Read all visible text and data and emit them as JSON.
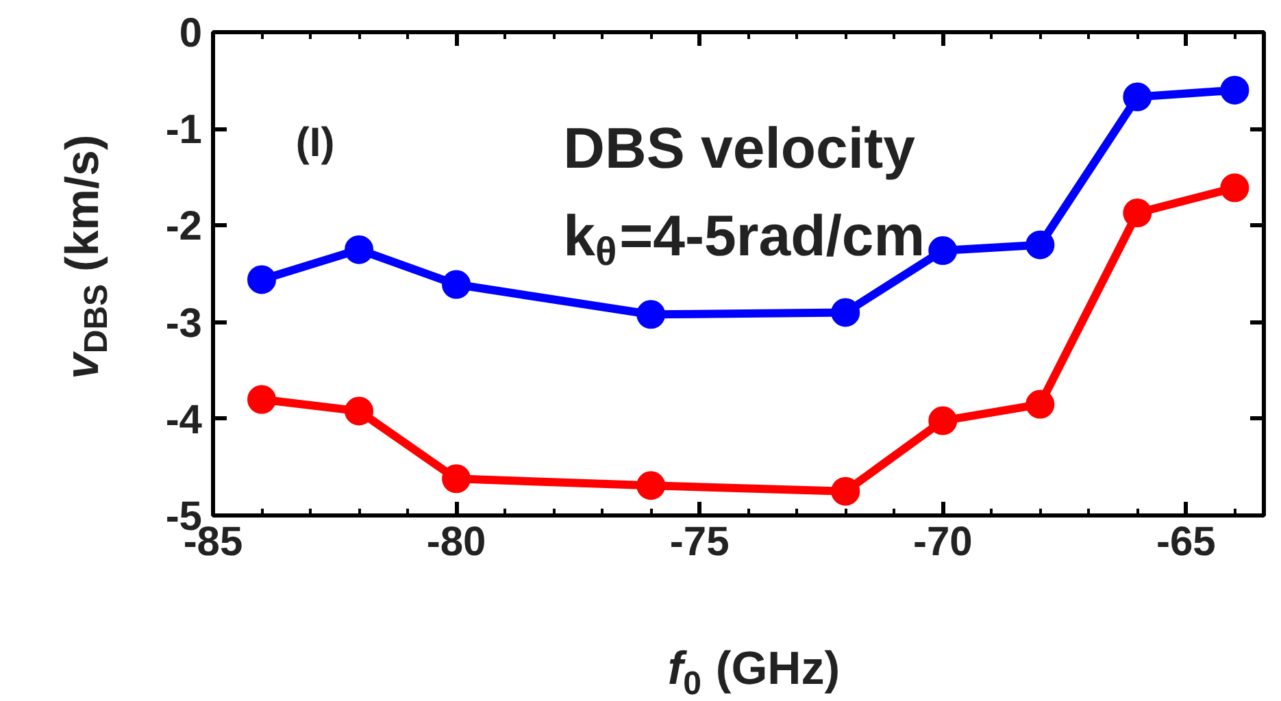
{
  "chart_data": {
    "type": "line",
    "xlabel": "f$_{0}$ (GHz)",
    "ylabel": "v$_{DBS}$ (km/s)",
    "x": [
      -84,
      -82,
      -80,
      -76,
      -72,
      -70,
      -68,
      -66,
      -64
    ],
    "series": [
      {
        "color": "#0000ff",
        "values": [
          -2.56,
          -2.25,
          -2.61,
          -2.92,
          -2.9,
          -2.26,
          -2.2,
          -0.67,
          -0.6
        ]
      },
      {
        "color": "#ff0000",
        "values": [
          -3.8,
          -3.92,
          -4.62,
          -4.69,
          -4.75,
          -4.02,
          -3.85,
          -1.87,
          -1.61
        ]
      }
    ],
    "xlim": [
      -85,
      -63.4
    ],
    "ylim": [
      -5,
      0
    ],
    "xticks": [
      -85,
      -80,
      -75,
      -70,
      -65
    ],
    "yticks": [
      -5,
      -4,
      -3,
      -2,
      -1,
      0
    ],
    "marker": "circle",
    "line_style": "solid",
    "annotations": [
      "(I)",
      "DBS velocity",
      "k$_{θ}$=4-5rad/cm"
    ]
  }
}
